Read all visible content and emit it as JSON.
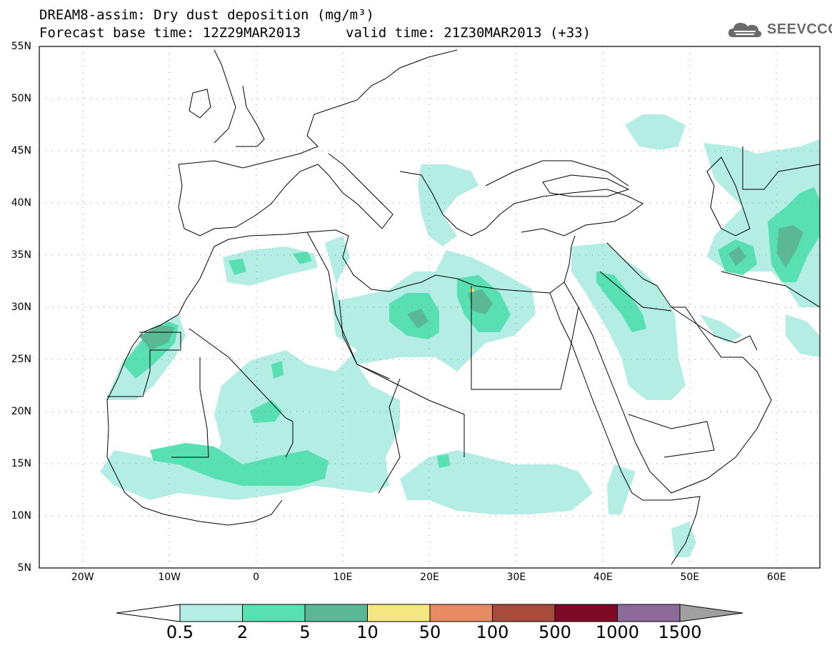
{
  "header": {
    "title_line1": "DREAM8-assim: Dry dust deposition (mg/m³)",
    "title_line2": "Forecast base time: 12Z29MAR2013",
    "valid_time": "valid time: 21Z30MAR2013 (+33)"
  },
  "logo": {
    "icon": "cloud-logo-icon",
    "text": "SEEVCCC"
  },
  "map": {
    "projection": "lat-lon",
    "lon_range": [
      -25,
      65
    ],
    "lat_range": [
      5,
      55
    ],
    "lat_ticks": [
      "55N",
      "50N",
      "45N",
      "40N",
      "35N",
      "30N",
      "25N",
      "20N",
      "15N",
      "10N",
      "5N"
    ],
    "lon_ticks": [
      "20W",
      "10W",
      "0",
      "10E",
      "20E",
      "30E",
      "40E",
      "50E",
      "60E"
    ],
    "grid": "dotted"
  },
  "colorbar": {
    "labels": [
      "0.5",
      "2",
      "5",
      "10",
      "50",
      "100",
      "500",
      "1000",
      "1500"
    ],
    "colors": [
      "#b4ede4",
      "#58dfb2",
      "#5ab896",
      "#f4e680",
      "#e88a64",
      "#a84a3c",
      "#7e0a28",
      "#8e6a9a"
    ],
    "under_color": "#ffffff",
    "over_color": "#a0a0a0"
  }
}
